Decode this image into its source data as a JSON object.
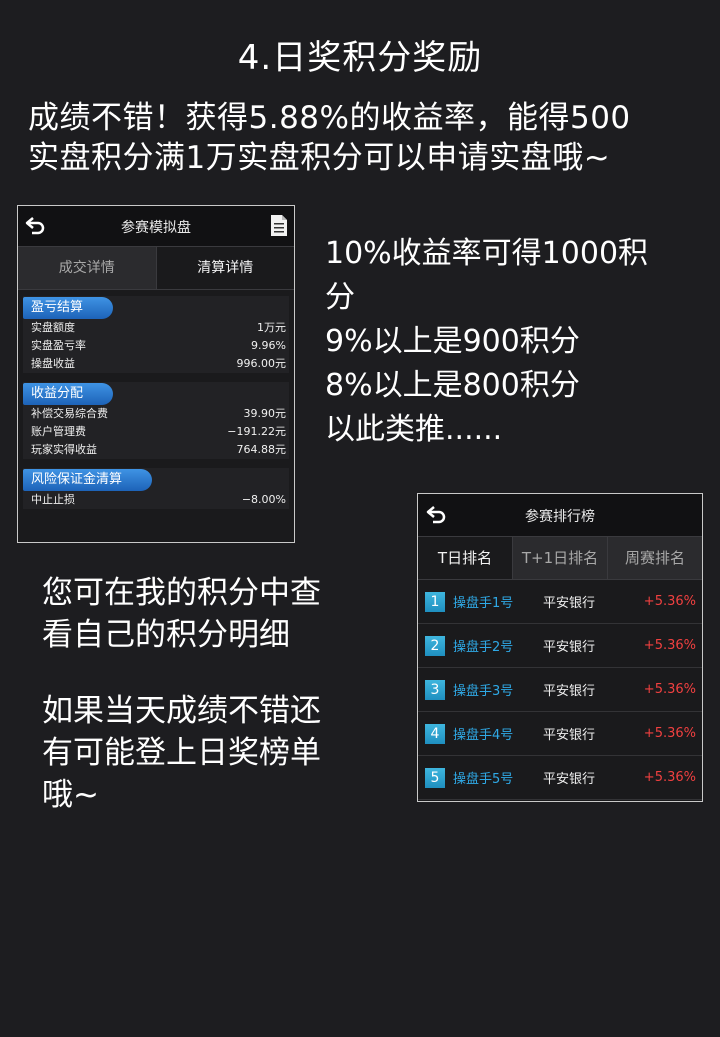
{
  "title": "4.日奖积分奖励",
  "intro": {
    "line1": "成绩不错！获得5.88%的收益率，能得500",
    "line2": "实盘积分满1万实盘积分可以申请实盘哦~"
  },
  "rules": {
    "line1": "10%收益率可得1000积",
    "line2": "分",
    "line3": "9%以上是900积分",
    "line4": "8%以上是800积分",
    "line5": "以此类推......"
  },
  "notes": {
    "a_line1": "您可在我的积分中查",
    "a_line2": "看自己的积分明细",
    "b_line1": "如果当天成绩不错还",
    "b_line2": "有可能登上日奖榜单",
    "b_line3": "哦~"
  },
  "sim_panel": {
    "title": "参赛模拟盘",
    "tabs": [
      "成交详情",
      "清算详情"
    ],
    "sections": [
      {
        "header": "盈亏结算",
        "rows": [
          {
            "label": "实盘额度",
            "value": "1万元"
          },
          {
            "label": "实盘盈亏率",
            "value": "9.96%"
          },
          {
            "label": "操盘收益",
            "value": "996.00元"
          }
        ]
      },
      {
        "header": "收益分配",
        "rows": [
          {
            "label": "补偿交易综合费",
            "value": "39.90元"
          },
          {
            "label": "账户管理费",
            "value": "−191.22元"
          },
          {
            "label": "玩家实得收益",
            "value": "764.88元"
          }
        ]
      },
      {
        "header": "风险保证金清算",
        "rows": [
          {
            "label": "中止止损",
            "value": "−8.00%"
          }
        ]
      }
    ]
  },
  "rank_panel": {
    "title": "参赛排行榜",
    "tabs": [
      "T日排名",
      "T+1日排名",
      "周赛排名"
    ],
    "rows": [
      {
        "rank": "1",
        "trader": "操盘手1号",
        "stock": "平安银行",
        "pct": "+5.36%"
      },
      {
        "rank": "2",
        "trader": "操盘手2号",
        "stock": "平安银行",
        "pct": "+5.36%"
      },
      {
        "rank": "3",
        "trader": "操盘手3号",
        "stock": "平安银行",
        "pct": "+5.36%"
      },
      {
        "rank": "4",
        "trader": "操盘手4号",
        "stock": "平安银行",
        "pct": "+5.36%"
      },
      {
        "rank": "5",
        "trader": "操盘手5号",
        "stock": "平安银行",
        "pct": "+5.36%"
      }
    ]
  },
  "icons": {
    "back": "back-arrow-icon",
    "doc": "document-icon"
  },
  "colors": {
    "background": "#1d1d20",
    "section_header": "#2a7ad0",
    "trader": "#2fa9e6",
    "gain": "#f04040",
    "rank_badge": "#2a9fcc"
  }
}
